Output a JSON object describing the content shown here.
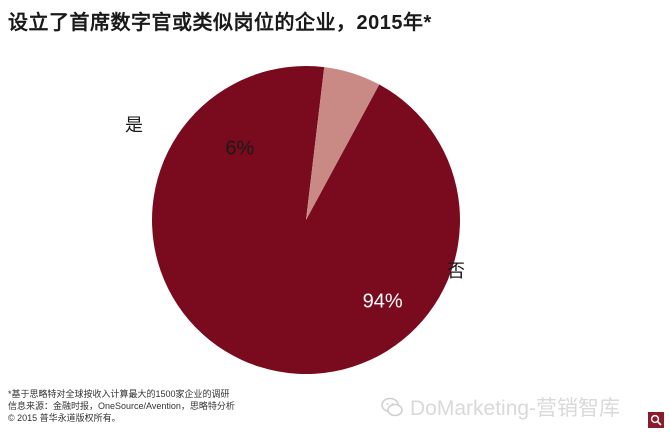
{
  "title": "设立了首席数字官或类似岗位的企业，2015年*",
  "chart_data": {
    "type": "pie",
    "slices": [
      {
        "label": "否",
        "value": 94,
        "value_label": "94%",
        "color": "#7a0a1e"
      },
      {
        "label": "是",
        "value": 6,
        "value_label": "6%",
        "color": "#c98a85"
      }
    ]
  },
  "footnote": {
    "line1": "*基于思略特对全球按收入计算最大的1500家企业的调研",
    "line2": "信息来源：金融时报，OneSource/Avention，思略特分析",
    "line3": "© 2015 普华永道版权所有。"
  },
  "watermark": {
    "text": "DoMarketing-营销智库",
    "icon": "wechat-logo-icon"
  },
  "search_icon": "search-icon"
}
